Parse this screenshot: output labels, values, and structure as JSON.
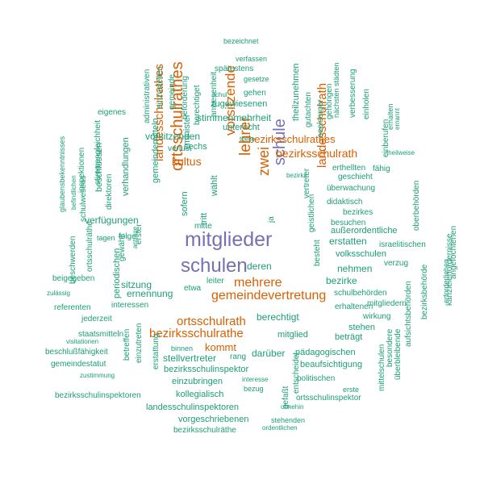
{
  "colors": {
    "big": "#7570b3",
    "orange": "#d95f02",
    "teal": "#1b9e77"
  },
  "words": [
    {
      "text": "mitglieder",
      "color": "big"
    },
    {
      "text": "schulen",
      "color": "big"
    },
    {
      "text": "schule",
      "color": "big"
    },
    {
      "text": "ortsschulrathes",
      "color": "orange"
    },
    {
      "text": "zwei",
      "color": "orange"
    },
    {
      "text": "lehrer",
      "color": "orange"
    },
    {
      "text": "vorsitzende",
      "color": "orange"
    },
    {
      "text": "landesschulrathes",
      "color": "orange"
    },
    {
      "text": "landesschulrath",
      "color": "orange"
    },
    {
      "text": "gemeindevertretung",
      "color": "orange"
    },
    {
      "text": "ortsschulrath",
      "color": "orange"
    },
    {
      "text": "bezirksschulrathe",
      "color": "orange"
    },
    {
      "text": "mehrere",
      "color": "orange"
    },
    {
      "text": "kultus",
      "color": "orange"
    },
    {
      "text": "bezirksschulrath",
      "color": "orange"
    },
    {
      "text": "bezirksschulrathes",
      "color": "orange"
    },
    {
      "text": "kommt",
      "color": "orange"
    },
    {
      "text": "vorsitzenden",
      "color": "teal"
    },
    {
      "text": "stimmenmehrheit",
      "color": "teal"
    },
    {
      "text": "unterricht",
      "color": "teal"
    },
    {
      "text": "sechs",
      "color": "teal"
    },
    {
      "text": "minister",
      "color": "teal"
    },
    {
      "text": "deren",
      "color": "teal"
    },
    {
      "text": "berechtigt",
      "color": "teal"
    },
    {
      "text": "sitzung",
      "color": "teal"
    },
    {
      "text": "leiter",
      "color": "teal"
    },
    {
      "text": "ernennung",
      "color": "teal"
    },
    {
      "text": "verfügungen",
      "color": "teal"
    },
    {
      "text": "erstatten",
      "color": "teal"
    },
    {
      "text": "nehmen",
      "color": "teal"
    },
    {
      "text": "bezirke",
      "color": "teal"
    },
    {
      "text": "volksschulen",
      "color": "teal"
    },
    {
      "text": "außerordentliche",
      "color": "teal"
    },
    {
      "text": "mitglied",
      "color": "teal"
    },
    {
      "text": "darüber",
      "color": "teal"
    },
    {
      "text": "stellvertreter",
      "color": "teal"
    },
    {
      "text": "bezirksschulinspektor",
      "color": "teal"
    },
    {
      "text": "einzubringen",
      "color": "teal"
    },
    {
      "text": "kollegialisch",
      "color": "teal"
    },
    {
      "text": "landesschulinspektoren",
      "color": "teal"
    },
    {
      "text": "vorgeschriebenen",
      "color": "teal"
    },
    {
      "text": "bezirksschulräthe",
      "color": "teal"
    },
    {
      "text": "bezirksschulinspektoren",
      "color": "teal"
    },
    {
      "text": "pädagogischen",
      "color": "teal"
    },
    {
      "text": "beaufsichtigung",
      "color": "teal"
    },
    {
      "text": "politischen",
      "color": "teal"
    },
    {
      "text": "ortsschulinspektor",
      "color": "teal"
    },
    {
      "text": "beträgt",
      "color": "teal"
    },
    {
      "text": "stehen",
      "color": "teal"
    },
    {
      "text": "wirkung",
      "color": "teal"
    },
    {
      "text": "mitgliedern",
      "color": "teal"
    },
    {
      "text": "erhaltenen",
      "color": "teal"
    },
    {
      "text": "schulbehörden",
      "color": "teal"
    },
    {
      "text": "israelitischen",
      "color": "teal"
    },
    {
      "text": "verzug",
      "color": "teal"
    },
    {
      "text": "besuchen",
      "color": "teal"
    },
    {
      "text": "bezirkes",
      "color": "teal"
    },
    {
      "text": "didaktisch",
      "color": "teal"
    },
    {
      "text": "überwachung",
      "color": "teal"
    },
    {
      "text": "erthellten",
      "color": "teal"
    },
    {
      "text": "fähig",
      "color": "teal"
    },
    {
      "text": "geschieht",
      "color": "teal"
    },
    {
      "text": "zugewiesenen",
      "color": "teal"
    },
    {
      "text": "gehen",
      "color": "teal"
    },
    {
      "text": "spätestens",
      "color": "teal"
    },
    {
      "text": "gesetze",
      "color": "teal"
    },
    {
      "text": "verfassen",
      "color": "teal"
    },
    {
      "text": "bezeichnet",
      "color": "teal"
    },
    {
      "text": "schul",
      "color": "teal"
    },
    {
      "text": "eigenes",
      "color": "teal"
    },
    {
      "text": "interessen",
      "color": "teal"
    },
    {
      "text": "folge",
      "color": "teal"
    },
    {
      "text": "referenten",
      "color": "teal"
    },
    {
      "text": "beigegeben",
      "color": "teal"
    },
    {
      "text": "zulässig",
      "color": "teal"
    },
    {
      "text": "jederzeit",
      "color": "teal"
    },
    {
      "text": "staatsmitteln",
      "color": "teal"
    },
    {
      "text": "beschlußfähigkeit",
      "color": "teal"
    },
    {
      "text": "gemeindestatut",
      "color": "teal"
    },
    {
      "text": "visitationen",
      "color": "teal"
    },
    {
      "text": "zustimmung",
      "color": "teal"
    },
    {
      "text": "binnen",
      "color": "teal"
    },
    {
      "text": "rang",
      "color": "teal"
    },
    {
      "text": "interesse",
      "color": "teal"
    },
    {
      "text": "bezug",
      "color": "teal"
    },
    {
      "text": "ohnehin",
      "color": "teal"
    },
    {
      "text": "stehenden",
      "color": "teal"
    },
    {
      "text": "ordentlichen",
      "color": "teal"
    },
    {
      "text": "erste",
      "color": "teal"
    },
    {
      "text": "mitte",
      "color": "teal"
    },
    {
      "text": "etwa",
      "color": "teal"
    },
    {
      "text": "tagen",
      "color": "teal"
    },
    {
      "text": "verlust",
      "color": "teal"
    },
    {
      "text": "bezirks",
      "color": "teal"
    },
    {
      "text": "theile",
      "color": "teal"
    },
    {
      "text": "theilweise",
      "color": "teal"
    },
    {
      "text": "tritt",
      "color": "teal"
    },
    {
      "text": "wählt",
      "color": "teal"
    },
    {
      "text": "sofern",
      "color": "teal"
    },
    {
      "text": "ja",
      "color": "teal"
    },
    {
      "text": "ortsschulräthe",
      "color": "teal"
    },
    {
      "text": "gemeindemitteln",
      "color": "teal"
    },
    {
      "text": "periodischen",
      "color": "teal"
    },
    {
      "text": "direktoren",
      "color": "teal"
    },
    {
      "text": "verhandlungen",
      "color": "teal"
    },
    {
      "text": "beschlüssen",
      "color": "teal"
    },
    {
      "text": "stimmengleichheit",
      "color": "teal"
    },
    {
      "text": "inspektionen",
      "color": "teal"
    },
    {
      "text": "glaubensbekenntnisses",
      "color": "teal"
    },
    {
      "text": "befindlichen",
      "color": "teal"
    },
    {
      "text": "schulwesens",
      "color": "teal"
    },
    {
      "text": "beschwerden",
      "color": "teal"
    },
    {
      "text": "gewählt",
      "color": "teal"
    },
    {
      "text": "antrage",
      "color": "teal"
    },
    {
      "text": "erster",
      "color": "teal"
    },
    {
      "text": "administrativen",
      "color": "teal"
    },
    {
      "text": "einzustellen",
      "color": "teal"
    },
    {
      "text": "gemeinde",
      "color": "teal"
    },
    {
      "text": "beförderung",
      "color": "teal"
    },
    {
      "text": "berechtiget",
      "color": "teal"
    },
    {
      "text": "anwesenheit",
      "color": "teal"
    },
    {
      "text": "theilzunehmen",
      "color": "teal"
    },
    {
      "text": "gutachten",
      "color": "teal"
    },
    {
      "text": "seelsorger",
      "color": "teal"
    },
    {
      "text": "gehörigen",
      "color": "teal"
    },
    {
      "text": "nächsten städten",
      "color": "teal"
    },
    {
      "text": "verbesserung",
      "color": "teal"
    },
    {
      "text": "einholen",
      "color": "teal"
    },
    {
      "text": "einberufen",
      "color": "teal"
    },
    {
      "text": "erhalten",
      "color": "teal"
    },
    {
      "text": "ernannt",
      "color": "teal"
    },
    {
      "text": "oberbehörden",
      "color": "teal"
    },
    {
      "text": "angefochtenen",
      "color": "teal"
    },
    {
      "text": "kanzleierfordernisse",
      "color": "teal"
    },
    {
      "text": "erforderlichen",
      "color": "teal"
    },
    {
      "text": "bezirksbehörde",
      "color": "teal"
    },
    {
      "text": "aufsichtsbehörden",
      "color": "teal"
    },
    {
      "text": "überbleibende",
      "color": "teal"
    },
    {
      "text": "besondere",
      "color": "teal"
    },
    {
      "text": "mittelschulen",
      "color": "teal"
    },
    {
      "text": "betreffen",
      "color": "teal"
    },
    {
      "text": "einzutreten",
      "color": "teal"
    },
    {
      "text": "erstattung",
      "color": "teal"
    },
    {
      "text": "entscheidet",
      "color": "teal"
    },
    {
      "text": "gefaßt",
      "color": "teal"
    },
    {
      "text": "vertreter",
      "color": "teal"
    },
    {
      "text": "geistlichen",
      "color": "teal"
    },
    {
      "text": "besteht",
      "color": "teal"
    }
  ]
}
